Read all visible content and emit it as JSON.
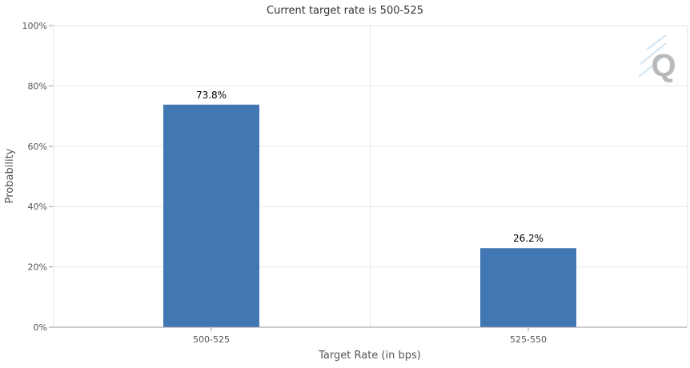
{
  "chart_data": {
    "type": "bar",
    "title": "Current target rate is 500-525",
    "xlabel": "Target Rate (in bps)",
    "ylabel": "Probability",
    "categories": [
      "500-525",
      "525-550"
    ],
    "values": [
      73.8,
      26.2
    ],
    "data_labels": [
      "73.8%",
      "26.2%"
    ],
    "ylim": [
      0,
      100
    ],
    "yticks": [
      0,
      20,
      40,
      60,
      80,
      100
    ],
    "ytick_labels": [
      "0%",
      "20%",
      "40%",
      "60%",
      "80%",
      "100%"
    ],
    "grid": true,
    "colors": {
      "bar": "#4178b4"
    }
  },
  "watermark": {
    "text": "Q"
  }
}
